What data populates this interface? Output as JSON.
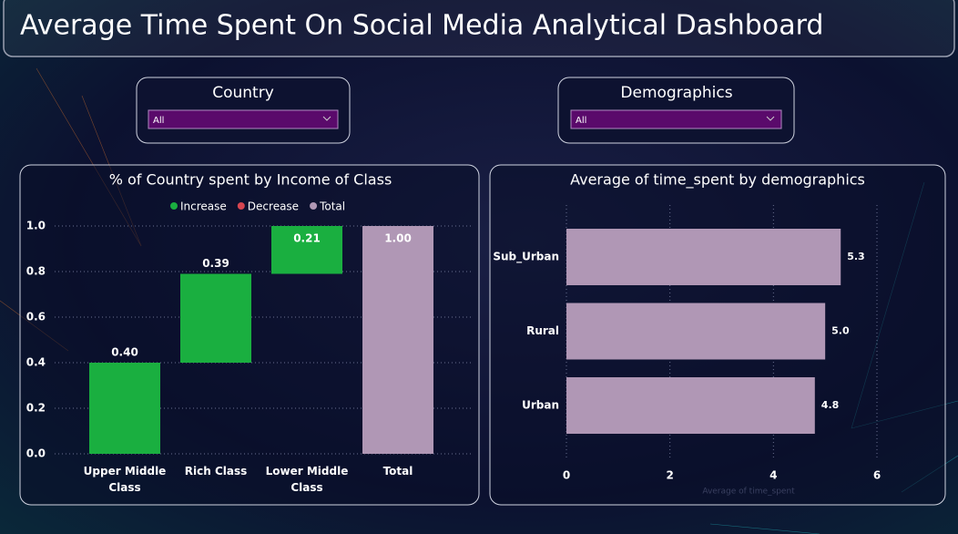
{
  "header": {
    "title": "Average Time Spent On Social Media Analytical Dashboard"
  },
  "slicers": [
    {
      "label": "Country",
      "selected": "All"
    },
    {
      "label": "Demographics",
      "selected": "All"
    }
  ],
  "chart_data": [
    {
      "type": "waterfall",
      "title": "% of Country spent by Income of Class",
      "categories": [
        "Upper Middle Class",
        "Rich Class",
        "Lower Middle Class",
        "Total"
      ],
      "series": [
        {
          "name": "Increase",
          "color": "#1aaf40",
          "values": [
            0.4,
            0.39,
            0.21,
            null
          ],
          "value_labels": [
            "0.40",
            "0.39",
            "0.21",
            null
          ]
        },
        {
          "name": "Decrease",
          "color": "#d64550",
          "values": [
            null,
            null,
            null,
            null
          ]
        },
        {
          "name": "Total",
          "color": "#b097b5",
          "values": [
            null,
            null,
            null,
            1.0
          ],
          "value_labels": [
            null,
            null,
            null,
            "1.00"
          ]
        }
      ],
      "ylim": [
        0,
        1
      ],
      "yticks": [
        {
          "value": 0,
          "label": "0.0"
        },
        {
          "value": 0.2,
          "label": "0.2"
        },
        {
          "value": 0.4,
          "label": "0.4"
        },
        {
          "value": 0.6,
          "label": "0.6"
        },
        {
          "value": 0.8,
          "label": "0.8"
        },
        {
          "value": 1,
          "label": "1.0"
        }
      ],
      "grid": true
    },
    {
      "type": "hbar",
      "title": "Average of time_spent by demographics",
      "x_label": "Average of time_spent",
      "categories": [
        "Sub_Urban",
        "Rural",
        "Urban"
      ],
      "values": [
        5.3,
        5.0,
        4.8
      ],
      "value_labels": [
        "5.3",
        "5.0",
        "4.8"
      ],
      "color": "#b097b5",
      "xlim": [
        0,
        6
      ],
      "xticks": [
        0,
        2,
        4,
        6
      ],
      "grid": true
    }
  ]
}
